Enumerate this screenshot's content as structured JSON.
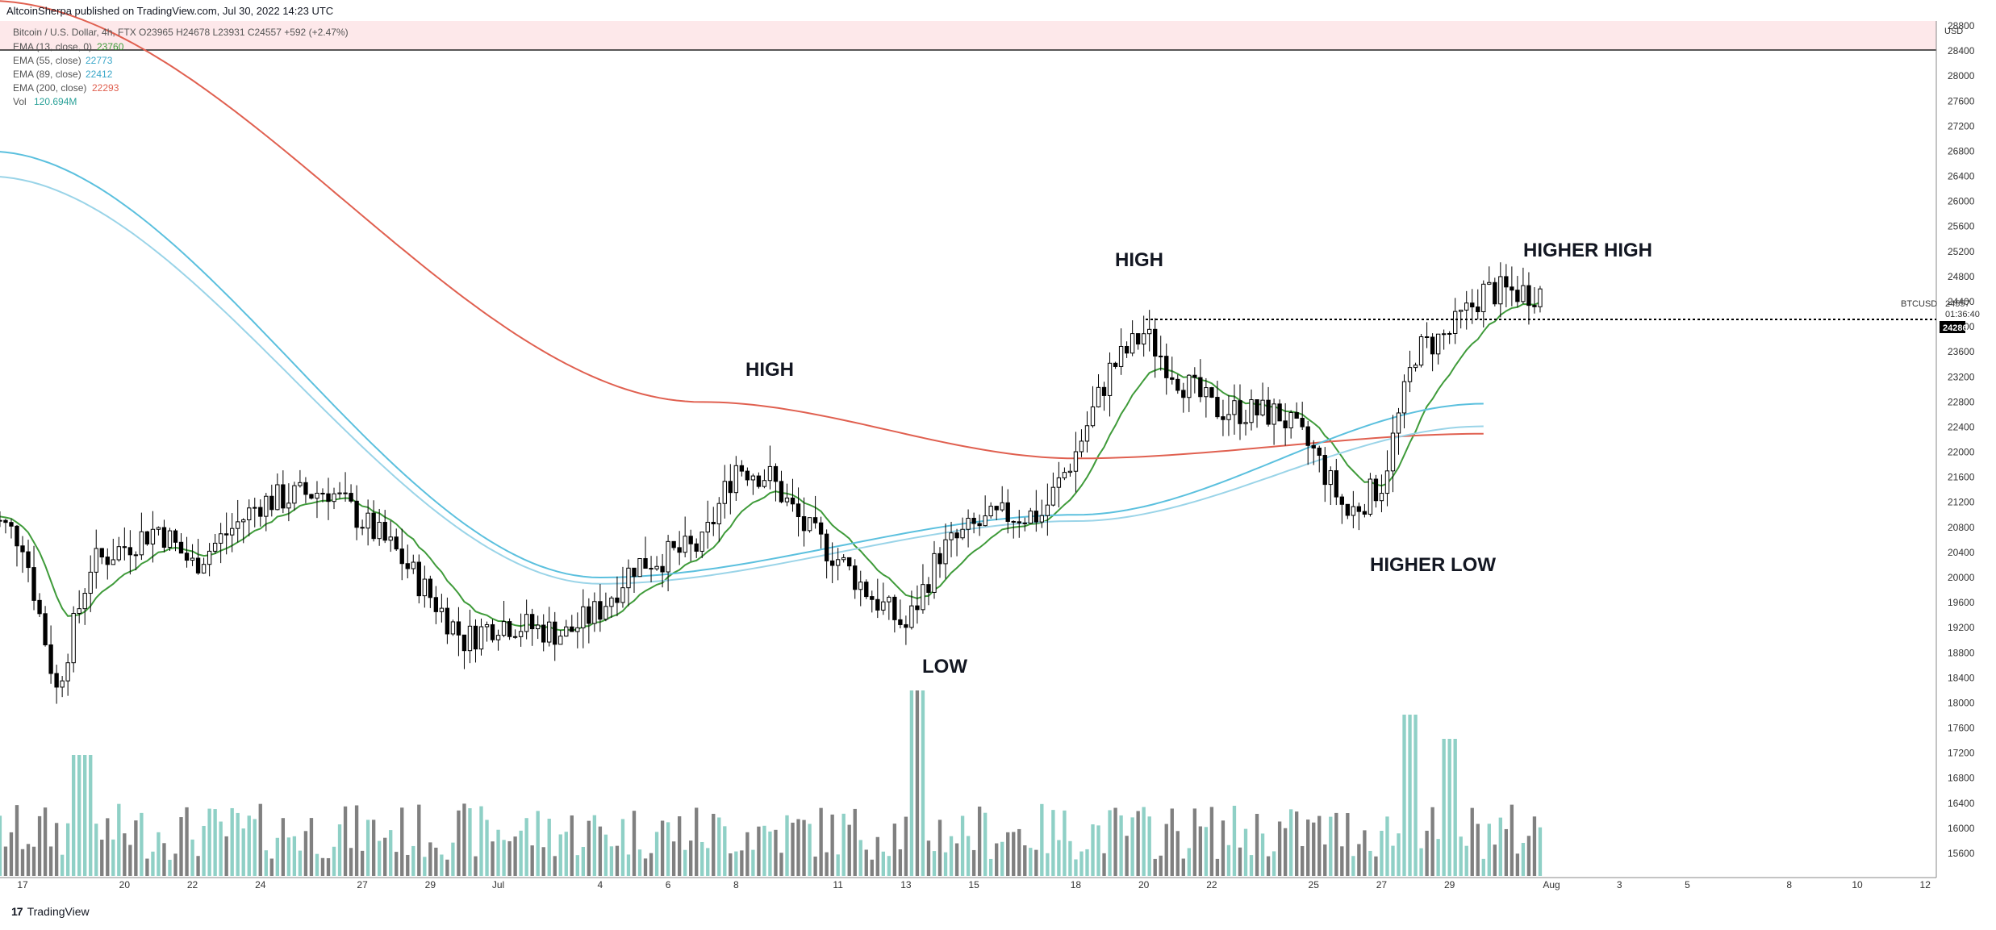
{
  "header": {
    "published": "AltcoinSherpa published on TradingView.com, Jul 30, 2022 14:23 UTC"
  },
  "legend": {
    "symbol_line": "Bitcoin / U.S. Dollar, 4h, FTX  O23965  H24678  L23931  C24557  +592 (+2.47%)",
    "ema13_label": "EMA (13, close, 0)",
    "ema13_value": "23760",
    "ema55_label": "EMA (55, close)",
    "ema55_value": "22773",
    "ema89_label": "EMA (89, close)",
    "ema89_value": "22412",
    "ema200_label": "EMA (200, close)",
    "ema200_value": "22293",
    "vol_label": "Vol",
    "vol_value": "120.694M"
  },
  "price_scale": {
    "unit": "USD",
    "ticks": [
      "15600",
      "16000",
      "16400",
      "16800",
      "17200",
      "17600",
      "18000",
      "18400",
      "18800",
      "19200",
      "19600",
      "20000",
      "20400",
      "20800",
      "21200",
      "21600",
      "22000",
      "22400",
      "22800",
      "23200",
      "23600",
      "24000",
      "24400",
      "24800",
      "25200",
      "25600",
      "26000",
      "26400",
      "26800",
      "27200",
      "27600",
      "28000",
      "28400",
      "28800"
    ],
    "symbol_tag": "BTCUSD",
    "last_price": "24557",
    "countdown": "01:36:40",
    "hline_price": "24286"
  },
  "time_scale": {
    "ticks": [
      "17",
      "20",
      "22",
      "24",
      "27",
      "29",
      "Jul",
      "4",
      "6",
      "8",
      "11",
      "13",
      "15",
      "18",
      "20",
      "22",
      "25",
      "27",
      "29",
      "Aug",
      "3",
      "5",
      "8",
      "10",
      "12"
    ]
  },
  "annotations": {
    "high_left": "HIGH",
    "high_mid": "HIGH",
    "higher_high": "HIGHER HIGH",
    "higher_low": "HIGHER LOW",
    "low": "LOW"
  },
  "footer": {
    "brand": "TradingView",
    "brand_mark": "17"
  },
  "colors": {
    "up": "#ffffff",
    "down": "#000000",
    "ema13": "#3f9b3a",
    "ema55": "#5bc0de",
    "ema89": "#9ad4e8",
    "ema200": "#e06050",
    "vol_up": "#8fd0c6",
    "vol_down": "#808080",
    "header_band": "#fde8ea"
  },
  "chart_data": {
    "type": "candlestick",
    "timeframe": "4h",
    "ylim": [
      15400,
      29000
    ],
    "anchors": [
      {
        "x": "Jun 16",
        "price": 21000
      },
      {
        "x": "Jun 17",
        "price": 20600
      },
      {
        "x": "Jun 18",
        "price": 18200
      },
      {
        "x": "Jun 19",
        "price": 20200
      },
      {
        "x": "Jun 20",
        "price": 20500
      },
      {
        "x": "Jun 21",
        "price": 20800
      },
      {
        "x": "Jun 22",
        "price": 20200
      },
      {
        "x": "Jun 24",
        "price": 21200
      },
      {
        "x": "Jun 26",
        "price": 21400
      },
      {
        "x": "Jun 27",
        "price": 20900
      },
      {
        "x": "Jun 28",
        "price": 20400
      },
      {
        "x": "Jun 30",
        "price": 19000
      },
      {
        "x": "Jul 1",
        "price": 19300
      },
      {
        "x": "Jul 3",
        "price": 19100
      },
      {
        "x": "Jul 4",
        "price": 19500
      },
      {
        "x": "Jul 5",
        "price": 20200
      },
      {
        "x": "Jul 7",
        "price": 20500
      },
      {
        "x": "Jul 8",
        "price": 21800
      },
      {
        "x": "Jul 9",
        "price": 21600
      },
      {
        "x": "Jul 10",
        "price": 20800
      },
      {
        "x": "Jul 11",
        "price": 20300
      },
      {
        "x": "Jul 12",
        "price": 19700
      },
      {
        "x": "Jul 13",
        "price": 19200
      },
      {
        "x": "Jul 14",
        "price": 20400
      },
      {
        "x": "Jul 15",
        "price": 20800
      },
      {
        "x": "Jul 16",
        "price": 21000
      },
      {
        "x": "Jul 17",
        "price": 21000
      },
      {
        "x": "Jul 18",
        "price": 22000
      },
      {
        "x": "Jul 19",
        "price": 23300
      },
      {
        "x": "Jul 20",
        "price": 23900
      },
      {
        "x": "Jul 21",
        "price": 23200
      },
      {
        "x": "Jul 22",
        "price": 22700
      },
      {
        "x": "Jul 24",
        "price": 22600
      },
      {
        "x": "Jul 25",
        "price": 22000
      },
      {
        "x": "Jul 26",
        "price": 21000
      },
      {
        "x": "Jul 27",
        "price": 21500
      },
      {
        "x": "Jul 28",
        "price": 23600
      },
      {
        "x": "Jul 29",
        "price": 23900
      },
      {
        "x": "Jul 30",
        "price": 24557
      }
    ],
    "ema200_path": [
      {
        "x": "Jun 16",
        "price": 29200
      },
      {
        "x": "Jul 7",
        "price": 22800
      },
      {
        "x": "Jul 18",
        "price": 21900
      },
      {
        "x": "Jul 30",
        "price": 22293
      }
    ],
    "ema89_path": [
      {
        "x": "Jun 16",
        "price": 26400
      },
      {
        "x": "Jul 4",
        "price": 19900
      },
      {
        "x": "Jul 18",
        "price": 20900
      },
      {
        "x": "Jul 30",
        "price": 22412
      }
    ],
    "ema55_path": [
      {
        "x": "Jun 16",
        "price": 26800
      },
      {
        "x": "Jul 4",
        "price": 20000
      },
      {
        "x": "Jul 18",
        "price": 21000
      },
      {
        "x": "Jul 30",
        "price": 22773
      }
    ],
    "volume_peaks": [
      {
        "x": "Jul 13",
        "label": "max"
      },
      {
        "x": "Jul 28",
        "label": "high"
      }
    ]
  }
}
